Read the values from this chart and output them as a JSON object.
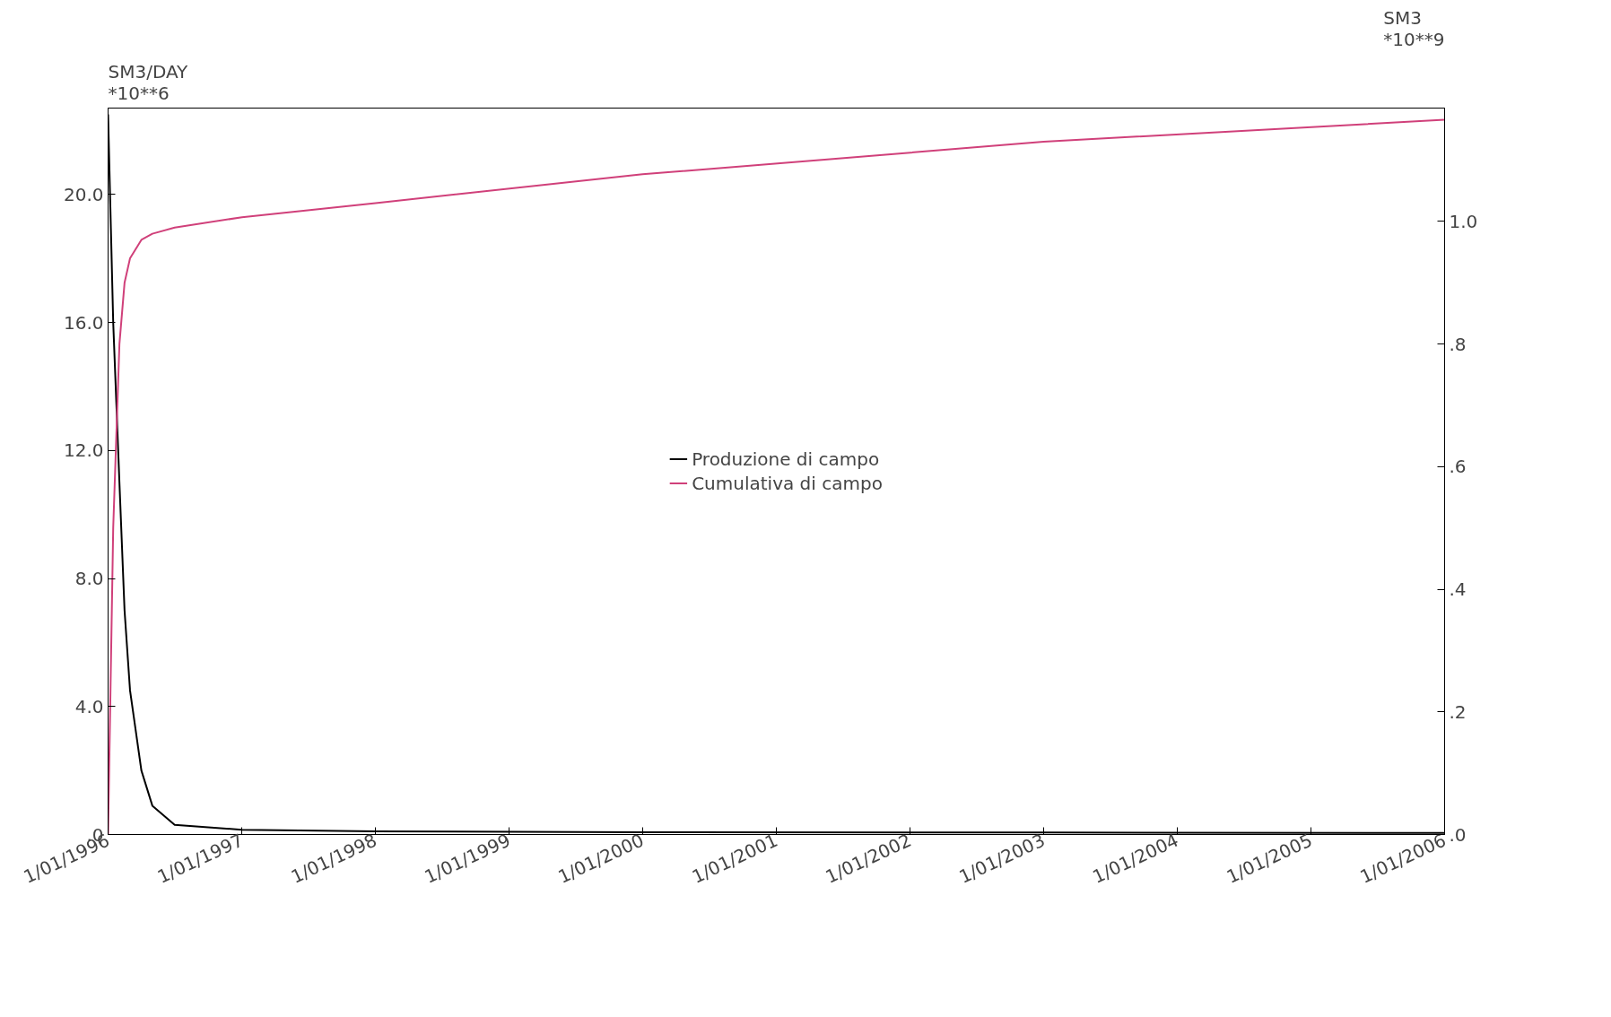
{
  "chart_data": {
    "type": "line",
    "ylabel": "SM3/DAY\n*10**6",
    "y2label": "SM3\n*10**9",
    "x": [
      "1996-01-01",
      "1996-01-15",
      "1996-02-01",
      "1996-02-15",
      "1996-03-01",
      "1996-04-01",
      "1996-05-01",
      "1996-07-01",
      "1997-01-01",
      "1998-01-01",
      "2000-01-01",
      "2003-01-01",
      "2006-01-01"
    ],
    "series": [
      {
        "name": "Produzione di campo",
        "color": "#000000",
        "values": [
          22.5,
          16,
          11,
          7,
          4.5,
          2,
          0.9,
          0.3,
          0.15,
          0.1,
          0.07,
          0.06,
          0.05
        ]
      },
      {
        "name": "Cumulativa di campo",
        "color": "#d0407a",
        "axis": "y2",
        "values": [
          0,
          0.5,
          0.8,
          0.9,
          0.94,
          0.97,
          0.98,
          0.99,
          1.007,
          1.03,
          1.077,
          1.13,
          1.166
        ]
      }
    ],
    "xlim": [
      "1996-01-01",
      "2006-01-01"
    ],
    "xticks": [
      {
        "value": "1996-01-01",
        "label": "1/01/1996"
      },
      {
        "value": "1997-01-01",
        "label": "1/01/1997"
      },
      {
        "value": "1998-01-01",
        "label": "1/01/1998"
      },
      {
        "value": "1999-01-01",
        "label": "1/01/1999"
      },
      {
        "value": "2000-01-01",
        "label": "1/01/2000"
      },
      {
        "value": "2001-01-01",
        "label": "1/01/2001"
      },
      {
        "value": "2002-01-01",
        "label": "1/01/2002"
      },
      {
        "value": "2003-01-01",
        "label": "1/01/2003"
      },
      {
        "value": "2004-01-01",
        "label": "1/01/2004"
      },
      {
        "value": "2005-01-01",
        "label": "1/01/2005"
      },
      {
        "value": "2006-01-01",
        "label": "1/01/2006"
      }
    ],
    "ylim": [
      0,
      22.7
    ],
    "yticks": [
      {
        "value": 0,
        "label": ".0"
      },
      {
        "value": 4,
        "label": "4.0"
      },
      {
        "value": 8,
        "label": "8.0"
      },
      {
        "value": 12,
        "label": "12.0"
      },
      {
        "value": 16,
        "label": "16.0"
      },
      {
        "value": 20,
        "label": "20.0"
      }
    ],
    "y2lim": [
      0,
      1.185
    ],
    "y2ticks": [
      {
        "value": 0,
        "label": ".0"
      },
      {
        "value": 0.2,
        "label": ".2"
      },
      {
        "value": 0.4,
        "label": ".4"
      },
      {
        "value": 0.6,
        "label": ".6"
      },
      {
        "value": 0.8,
        "label": ".8"
      },
      {
        "value": 1.0,
        "label": "1.0"
      }
    ],
    "legend": "center",
    "grid": false,
    "marker": "none",
    "line_style": "solid"
  }
}
